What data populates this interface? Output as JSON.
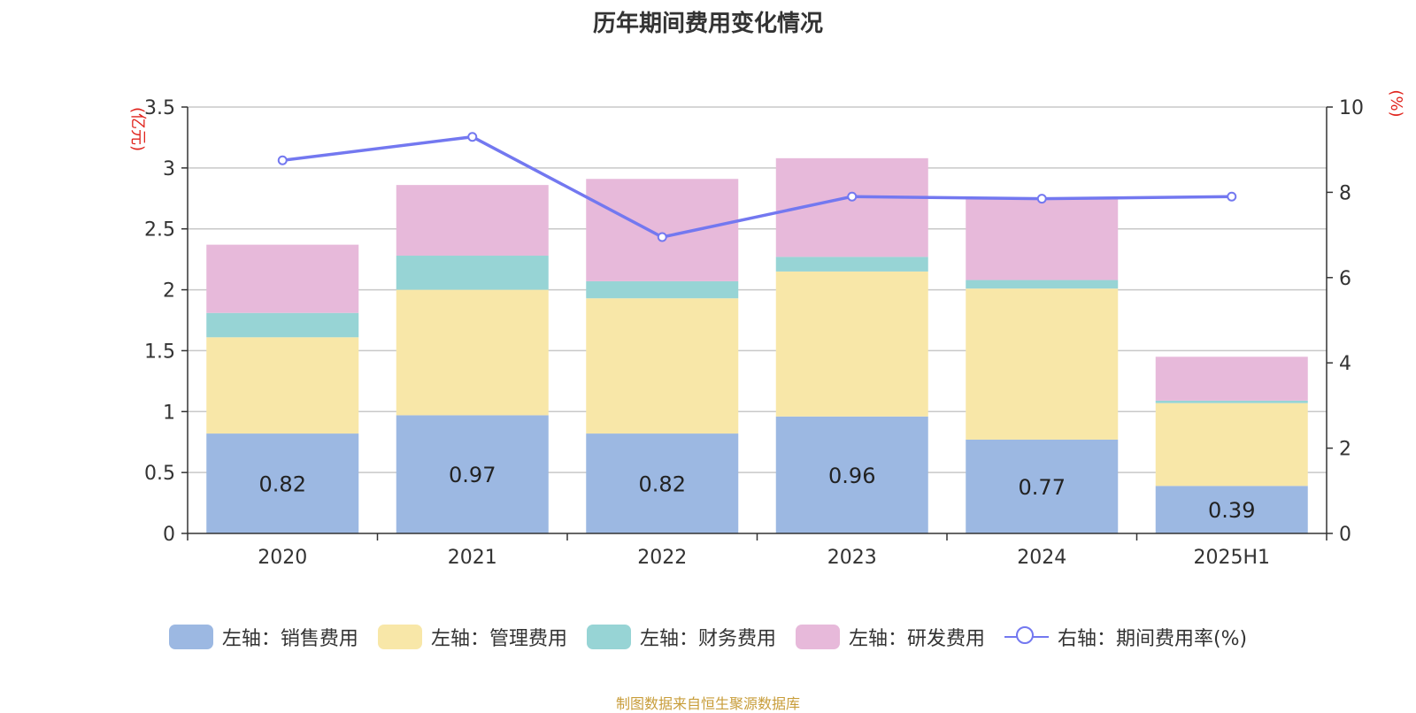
{
  "chart_data": {
    "type": "bar",
    "stacked": true,
    "title": "历年期间费用变化情况",
    "categories": [
      "2020",
      "2021",
      "2022",
      "2023",
      "2024",
      "2025H1"
    ],
    "left_axis": {
      "unit": "(亿元)",
      "ylim": [
        0,
        3.5
      ],
      "ticks": [
        "0",
        "0.5",
        "1",
        "1.5",
        "2",
        "2.5",
        "3",
        "3.5"
      ]
    },
    "right_axis": {
      "unit": "(%)",
      "ylim": [
        0,
        10
      ],
      "ticks": [
        "0",
        "2",
        "4",
        "6",
        "8",
        "10"
      ]
    },
    "series": [
      {
        "name": "左轴：销售费用",
        "axis": "left",
        "kind": "bar",
        "color": "#9cb8e2",
        "values": [
          0.82,
          0.97,
          0.82,
          0.96,
          0.77,
          0.39
        ],
        "labels": [
          "0.82",
          "0.97",
          "0.82",
          "0.96",
          "0.77",
          "0.39"
        ]
      },
      {
        "name": "左轴：管理费用",
        "axis": "left",
        "kind": "bar",
        "color": "#f8e7a8",
        "values": [
          0.79,
          1.03,
          1.11,
          1.19,
          1.24,
          0.68
        ]
      },
      {
        "name": "左轴：财务费用",
        "axis": "left",
        "kind": "bar",
        "color": "#97d4d5",
        "values": [
          0.2,
          0.28,
          0.14,
          0.12,
          0.07,
          0.02
        ]
      },
      {
        "name": "左轴：研发费用",
        "axis": "left",
        "kind": "bar",
        "color": "#e7b9da",
        "values": [
          0.56,
          0.58,
          0.84,
          0.81,
          0.67,
          0.36
        ]
      },
      {
        "name": "右轴：期间费用率(%)",
        "axis": "right",
        "kind": "line",
        "color": "#7378f0",
        "values": [
          8.75,
          9.3,
          6.95,
          7.9,
          7.85,
          7.9
        ]
      }
    ],
    "grid": true,
    "legend_position": "bottom"
  },
  "source_note": "制图数据来自恒生聚源数据库"
}
